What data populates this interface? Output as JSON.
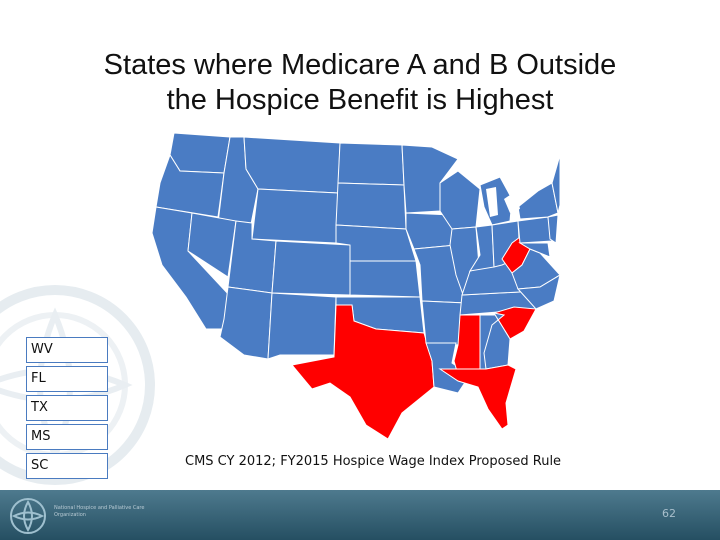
{
  "slide": {
    "title_line1": "States where Medicare A and B Outside",
    "title_line2": "the Hospice Benefit is Highest",
    "legend": [
      "WV",
      "FL",
      "TX",
      "MS",
      "SC"
    ],
    "source": "CMS CY 2012; FY2015 Hospice Wage Index Proposed Rule",
    "org_line1": "National Hospice and Palliative Care",
    "org_line2": "Organization",
    "page_number": "62"
  },
  "map": {
    "base_color": "#4a7cc4",
    "highlight_color": "#ff0000",
    "highlighted_states": [
      "WV",
      "FL",
      "TX",
      "MS",
      "SC"
    ]
  }
}
